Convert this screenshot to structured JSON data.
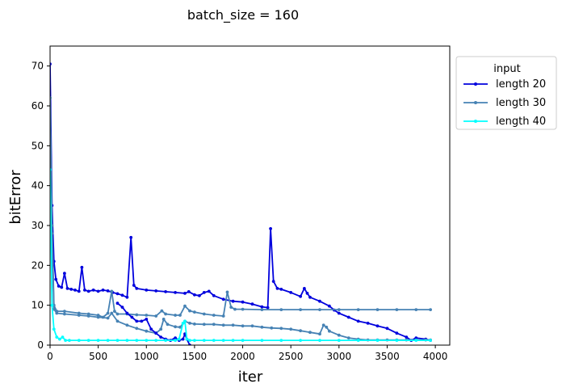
{
  "chart_data": {
    "type": "line",
    "title": "batch_size = 160",
    "xlabel": "iter",
    "ylabel": "bitError",
    "xlim": [
      0,
      4150
    ],
    "ylim": [
      0,
      75
    ],
    "xticks": [
      0,
      500,
      1000,
      1500,
      2000,
      2500,
      3000,
      3500,
      4000
    ],
    "yticks": [
      0,
      10,
      20,
      30,
      40,
      50,
      60,
      70
    ],
    "xtick_labels": [
      "0",
      "500",
      "1000",
      "1500",
      "2000",
      "2500",
      "3000",
      "3500",
      "4000"
    ],
    "ytick_labels": [
      "0",
      "10",
      "20",
      "30",
      "40",
      "50",
      "60",
      "70"
    ],
    "grid": false,
    "legend": {
      "title": "input",
      "placement": "outside-top-right"
    },
    "series": [
      {
        "name": "length 20",
        "color": "#0000dd",
        "points": [
          [
            0,
            70.5
          ],
          [
            20,
            35
          ],
          [
            40,
            21
          ],
          [
            60,
            16.5
          ],
          [
            90,
            14.8
          ],
          [
            120,
            14.5
          ],
          [
            150,
            18
          ],
          [
            180,
            14.2
          ],
          [
            220,
            14
          ],
          [
            260,
            13.8
          ],
          [
            300,
            13.5
          ],
          [
            330,
            19.5
          ],
          [
            360,
            13.8
          ],
          [
            400,
            13.5
          ],
          [
            450,
            13.8
          ],
          [
            500,
            13.5
          ],
          [
            550,
            13.8
          ],
          [
            600,
            13.6
          ],
          [
            650,
            13.2
          ],
          [
            700,
            12.9
          ],
          [
            750,
            12.5
          ],
          [
            800,
            12
          ],
          [
            840,
            27
          ],
          [
            870,
            15
          ],
          [
            900,
            14.2
          ],
          [
            1000,
            13.8
          ],
          [
            1100,
            13.6
          ],
          [
            1200,
            13.4
          ],
          [
            1300,
            13.2
          ],
          [
            1400,
            13
          ],
          [
            1440,
            13.4
          ],
          [
            1500,
            12.6
          ],
          [
            1550,
            12.4
          ],
          [
            1600,
            13.2
          ],
          [
            1650,
            13.5
          ],
          [
            1700,
            12.4
          ],
          [
            1800,
            11.5
          ],
          [
            1900,
            11
          ],
          [
            2000,
            10.8
          ],
          [
            2100,
            10.3
          ],
          [
            2200,
            9.6
          ],
          [
            2260,
            9.4
          ],
          [
            2290,
            29.2
          ],
          [
            2320,
            16
          ],
          [
            2360,
            14.2
          ],
          [
            2400,
            14
          ],
          [
            2500,
            13.2
          ],
          [
            2600,
            12.2
          ],
          [
            2640,
            14.2
          ],
          [
            2670,
            13
          ],
          [
            2700,
            12
          ],
          [
            2800,
            11
          ],
          [
            2900,
            9.8
          ],
          [
            2950,
            8.8
          ],
          [
            3000,
            8
          ],
          [
            3100,
            7
          ],
          [
            3200,
            6
          ],
          [
            3300,
            5.5
          ],
          [
            3400,
            4.8
          ],
          [
            3500,
            4.2
          ],
          [
            3600,
            3
          ],
          [
            3700,
            2
          ],
          [
            3750,
            1.2
          ],
          [
            3800,
            1.8
          ],
          [
            3900,
            1.5
          ],
          [
            3950,
            1.2
          ]
        ]
      },
      {
        "name": "length 30",
        "color": "#4682b4",
        "points": [
          [
            0,
            62
          ],
          [
            20,
            30
          ],
          [
            40,
            10
          ],
          [
            70,
            8.5
          ],
          [
            150,
            8.5
          ],
          [
            300,
            8
          ],
          [
            400,
            7.8
          ],
          [
            500,
            7.5
          ],
          [
            550,
            7
          ],
          [
            600,
            8
          ],
          [
            640,
            13.5
          ],
          [
            670,
            8.5
          ],
          [
            700,
            7.8
          ],
          [
            800,
            7.8
          ],
          [
            900,
            7.6
          ],
          [
            1000,
            7.5
          ],
          [
            1100,
            7.3
          ],
          [
            1160,
            8.6
          ],
          [
            1200,
            7.8
          ],
          [
            1300,
            7.5
          ],
          [
            1350,
            7.5
          ],
          [
            1400,
            9.8
          ],
          [
            1450,
            8.6
          ],
          [
            1500,
            8.3
          ],
          [
            1600,
            7.8
          ],
          [
            1700,
            7.5
          ],
          [
            1800,
            7.3
          ],
          [
            1840,
            13.3
          ],
          [
            1880,
            9.5
          ],
          [
            1920,
            9
          ],
          [
            2000,
            9
          ],
          [
            2200,
            8.9
          ],
          [
            2400,
            8.9
          ],
          [
            2600,
            8.9
          ],
          [
            2800,
            8.9
          ],
          [
            3000,
            8.9
          ],
          [
            3200,
            8.9
          ],
          [
            3400,
            8.9
          ],
          [
            3600,
            8.9
          ],
          [
            3800,
            8.9
          ],
          [
            3950,
            8.9
          ]
        ]
      },
      {
        "name": "length 30",
        "color": "#4682b4",
        "points": [
          [
            0,
            62
          ],
          [
            20,
            28
          ],
          [
            40,
            9
          ],
          [
            70,
            8
          ],
          [
            150,
            7.8
          ],
          [
            300,
            7.5
          ],
          [
            400,
            7.3
          ],
          [
            500,
            7
          ],
          [
            600,
            6.8
          ],
          [
            640,
            8
          ],
          [
            700,
            6
          ],
          [
            800,
            5
          ],
          [
            900,
            4.2
          ],
          [
            1000,
            3.5
          ],
          [
            1100,
            3
          ],
          [
            1150,
            4
          ],
          [
            1180,
            6.5
          ],
          [
            1220,
            5.2
          ],
          [
            1300,
            4.6
          ],
          [
            1350,
            4.5
          ],
          [
            1400,
            6
          ],
          [
            1450,
            5.5
          ],
          [
            1500,
            5.3
          ],
          [
            1600,
            5.2
          ],
          [
            1700,
            5.2
          ],
          [
            1800,
            5
          ],
          [
            1900,
            5
          ],
          [
            2000,
            4.8
          ],
          [
            2100,
            4.8
          ],
          [
            2200,
            4.5
          ],
          [
            2300,
            4.3
          ],
          [
            2400,
            4.2
          ],
          [
            2500,
            4
          ],
          [
            2600,
            3.6
          ],
          [
            2700,
            3.2
          ],
          [
            2800,
            2.8
          ],
          [
            2840,
            5
          ],
          [
            2870,
            4.5
          ],
          [
            2900,
            3.5
          ],
          [
            3000,
            2.5
          ],
          [
            3100,
            1.8
          ],
          [
            3200,
            1.5
          ],
          [
            3300,
            1.3
          ],
          [
            3400,
            1.3
          ],
          [
            3500,
            1.3
          ],
          [
            3600,
            1.3
          ],
          [
            3700,
            1.3
          ],
          [
            3800,
            1.3
          ],
          [
            3900,
            1.3
          ],
          [
            3950,
            1.3
          ]
        ]
      },
      {
        "name": "length 20",
        "color": "#0000dd",
        "points": [
          [
            700,
            10.5
          ],
          [
            750,
            9.5
          ],
          [
            800,
            8
          ],
          [
            850,
            7
          ],
          [
            900,
            6
          ],
          [
            950,
            6
          ],
          [
            1000,
            6.5
          ],
          [
            1050,
            4
          ],
          [
            1100,
            3
          ],
          [
            1150,
            2
          ],
          [
            1200,
            1.5
          ],
          [
            1250,
            1.2
          ],
          [
            1300,
            1.8
          ],
          [
            1340,
            1.2
          ],
          [
            1380,
            1.5
          ],
          [
            1400,
            2.8
          ],
          [
            1420,
            1.5
          ],
          [
            1450,
            0
          ]
        ]
      },
      {
        "name": "length 40",
        "color": "#00ffff",
        "points": [
          [
            0,
            44
          ],
          [
            20,
            10
          ],
          [
            40,
            4
          ],
          [
            70,
            2
          ],
          [
            100,
            1.5
          ],
          [
            130,
            2
          ],
          [
            160,
            1.2
          ],
          [
            200,
            1.2
          ],
          [
            300,
            1.2
          ],
          [
            400,
            1.2
          ],
          [
            500,
            1.2
          ],
          [
            600,
            1.2
          ],
          [
            700,
            1.2
          ],
          [
            800,
            1.2
          ],
          [
            900,
            1.2
          ],
          [
            1000,
            1.2
          ],
          [
            1100,
            1.2
          ],
          [
            1200,
            1.2
          ],
          [
            1300,
            1.2
          ],
          [
            1340,
            1.5
          ],
          [
            1380,
            5.5
          ],
          [
            1400,
            6
          ],
          [
            1420,
            1.5
          ],
          [
            1450,
            1.2
          ],
          [
            1500,
            1.2
          ],
          [
            1600,
            1.2
          ],
          [
            1700,
            1.2
          ],
          [
            1800,
            1.2
          ],
          [
            1900,
            1.2
          ],
          [
            2000,
            1.2
          ],
          [
            2200,
            1.2
          ],
          [
            2400,
            1.2
          ],
          [
            2600,
            1.2
          ],
          [
            2800,
            1.2
          ],
          [
            3000,
            1.2
          ],
          [
            3200,
            1.2
          ],
          [
            3400,
            1.2
          ],
          [
            3600,
            1.2
          ],
          [
            3800,
            1.2
          ],
          [
            3950,
            1.2
          ]
        ]
      }
    ],
    "legend_entries": [
      {
        "label": "length 20",
        "color": "#0000dd"
      },
      {
        "label": "length 30",
        "color": "#4682b4"
      },
      {
        "label": "length 40",
        "color": "#00ffff"
      }
    ]
  }
}
